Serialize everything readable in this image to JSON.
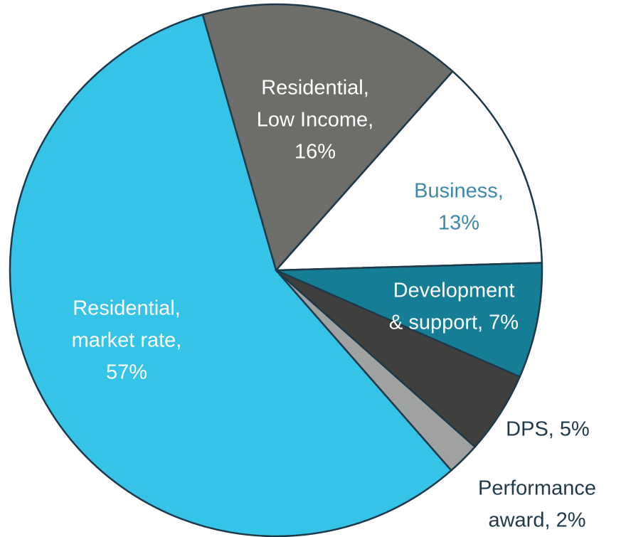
{
  "chart_data": {
    "type": "pie",
    "start_angle": -16,
    "values": [
      16,
      13,
      7,
      5,
      2,
      57
    ],
    "colors": [
      "#6d6e6a",
      "#ffffff",
      "#167d96",
      "#3f403e",
      "#a0a2a2",
      "#35c3e8"
    ],
    "label_colors": [
      "#ffffff",
      "#3d8aa8",
      "#ffffff",
      "#1f3a4a",
      "#1f3a4a",
      "#ffffff"
    ],
    "labels": [
      [
        "Residential,",
        "Low Income,",
        "16%"
      ],
      [
        "Business,",
        "13%"
      ],
      [
        "Development",
        "& support, 7%"
      ],
      [
        "DPS, 5%"
      ],
      [
        "Performance",
        "award, 2%"
      ],
      [
        "Residential,",
        "market rate,",
        "57%"
      ]
    ]
  }
}
